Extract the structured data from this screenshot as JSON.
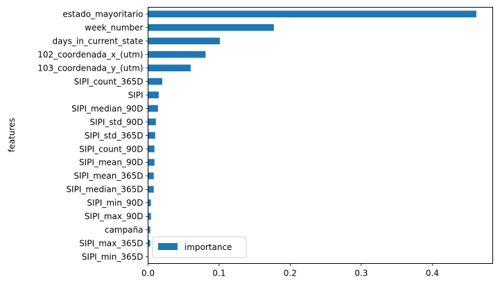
{
  "chart_data": {
    "type": "bar",
    "orientation": "horizontal",
    "categories": [
      "estado_mayoritario",
      "week_number",
      "days_in_current_state",
      "102_coordenada_x_(utm)",
      "103_coordenada_y_(utm)",
      "SIPI_count_365D",
      "SIPI",
      "SIPI_median_90D",
      "SIPI_std_90D",
      "SIPI_std_365D",
      "SIPI_count_90D",
      "SIPI_mean_90D",
      "SIPI_mean_365D",
      "SIPI_median_365D",
      "SIPI_min_90D",
      "SIPI_max_90D",
      "campaña",
      "SIPI_max_365D",
      "SIPI_min_365D"
    ],
    "series": [
      {
        "name": "importance",
        "values": [
          0.462,
          0.177,
          0.101,
          0.081,
          0.06,
          0.02,
          0.015,
          0.014,
          0.011,
          0.01,
          0.009,
          0.009,
          0.008,
          0.008,
          0.004,
          0.004,
          0.003,
          0.003,
          0.0
        ]
      }
    ],
    "xlabel": "",
    "ylabel": "features",
    "xlim": [
      0.0,
      0.485
    ],
    "xticks": [
      0.0,
      0.1,
      0.2,
      0.3,
      0.4
    ],
    "xtick_labels": [
      "0.0",
      "0.1",
      "0.2",
      "0.3",
      "0.4"
    ],
    "grid": false,
    "legend_position": "lower-left",
    "bar_color": "#1f77b4"
  }
}
